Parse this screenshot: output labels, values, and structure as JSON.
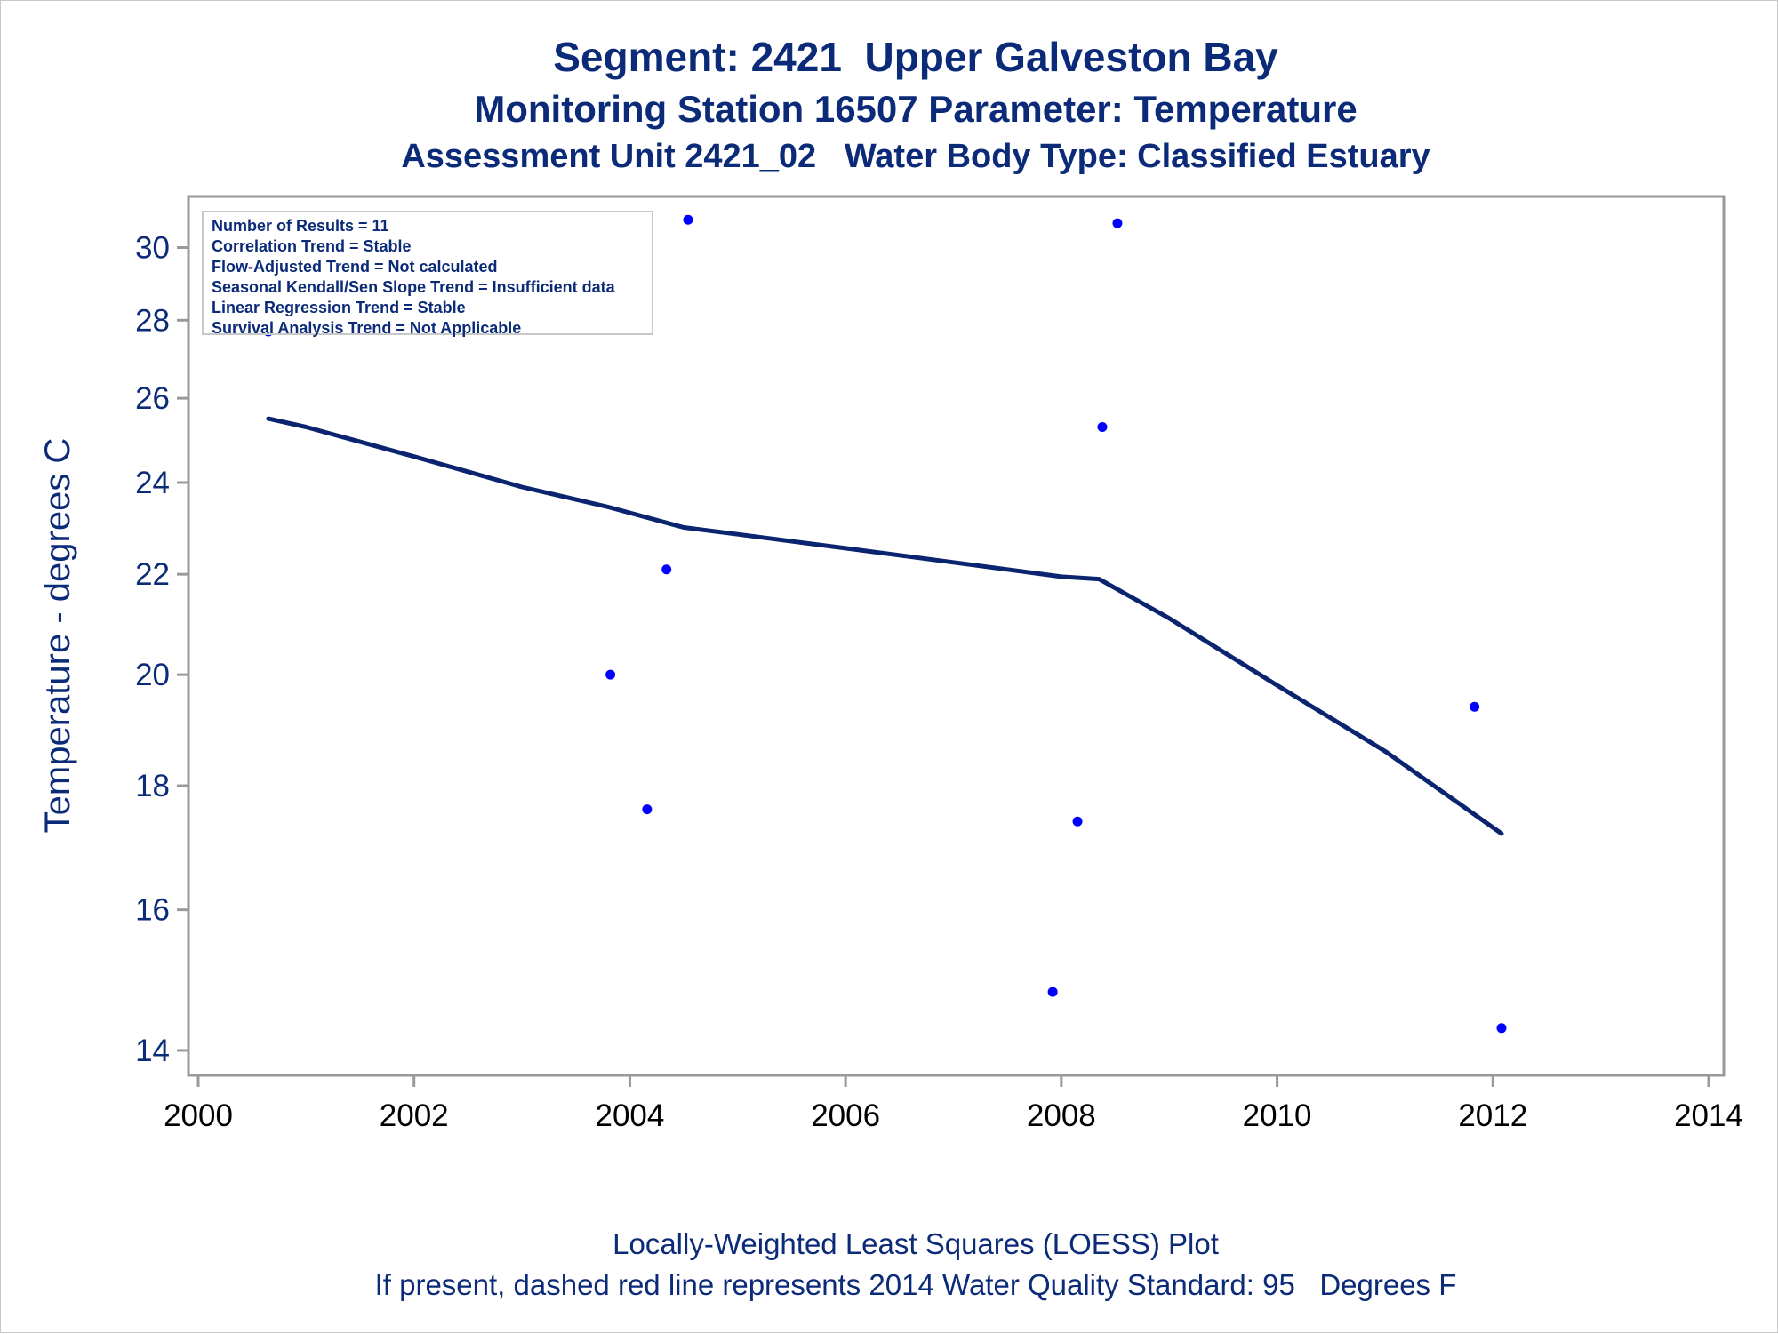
{
  "titles": {
    "title": "Segment: 2421  Upper Galveston Bay",
    "subtitle1": "Monitoring Station 16507 Parameter: Temperature",
    "subtitle2": "Assessment Unit 2421_02   Water Body Type: Classified Estuary"
  },
  "info_box": {
    "lines": [
      "Number of Results = 11",
      "Correlation Trend = Stable",
      "Flow-Adjusted Trend = Not calculated",
      "Seasonal Kendall/Sen Slope Trend = Insufficient data",
      "Linear Regression Trend = Stable",
      "Survival Analysis Trend = Not Applicable"
    ]
  },
  "footnotes": {
    "line1": "Locally-Weighted Least Squares (LOESS) Plot",
    "line2": "If present, dashed red line represents 2014 Water Quality Standard: 95   Degrees F"
  },
  "colors": {
    "text": "#0b2a78",
    "points": "#0000ff",
    "loess_line": "#0b2470",
    "axis": "#999999"
  },
  "chart_data": {
    "type": "scatter",
    "ylabel": "Temperature - degrees C",
    "xlabel": "",
    "y_scale": "log",
    "xlim": [
      2000,
      2014
    ],
    "ylim": [
      13.8,
      31.2
    ],
    "x_ticks": [
      "2000",
      "2002",
      "2004",
      "2006",
      "2008",
      "2010",
      "2012",
      "2014"
    ],
    "y_ticks": [
      "14",
      "16",
      "18",
      "20",
      "22",
      "24",
      "26",
      "28",
      "30"
    ],
    "grid": false,
    "series": [
      {
        "kind": "points",
        "x": [
          2000.65,
          2003.82,
          2004.16,
          2004.34,
          2004.54,
          2007.92,
          2008.15,
          2008.38,
          2008.52,
          2011.83,
          2012.08
        ],
        "y": [
          27.7,
          20.0,
          17.6,
          22.1,
          30.8,
          14.8,
          17.4,
          25.3,
          30.7,
          19.4,
          14.3
        ]
      },
      {
        "kind": "loess",
        "x": [
          2000.65,
          2001,
          2002,
          2003,
          2003.8,
          2004.5,
          2005,
          2006,
          2007,
          2008,
          2008.35,
          2009,
          2010,
          2011,
          2012.08
        ],
        "y": [
          25.5,
          25.3,
          24.6,
          23.9,
          23.45,
          23.0,
          22.85,
          22.55,
          22.25,
          21.95,
          21.9,
          21.1,
          19.8,
          18.6,
          17.2
        ]
      }
    ]
  }
}
